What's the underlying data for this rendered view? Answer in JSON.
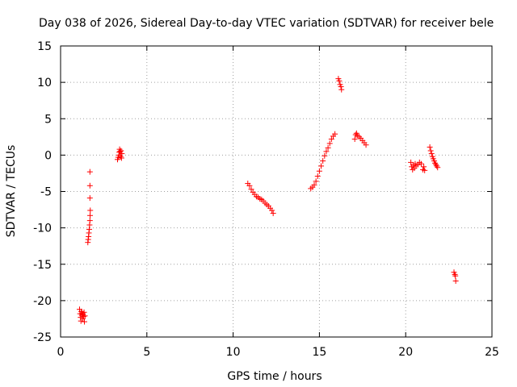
{
  "chart_data": {
    "type": "scatter",
    "title": "Day 038 of 2026, Sidereal Day-to-day VTEC variation (SDTVAR) for receiver bele",
    "xlabel": "GPS time / hours",
    "ylabel": "SDTVAR / TECUs",
    "xlim": [
      0,
      25
    ],
    "ylim": [
      -25,
      15
    ],
    "xticks": [
      0,
      5,
      10,
      15,
      20,
      25
    ],
    "yticks": [
      -25,
      -20,
      -15,
      -10,
      -5,
      0,
      5,
      10,
      15
    ],
    "xtick_labels": [
      "0",
      "5",
      "10",
      "15",
      "20",
      "25"
    ],
    "ytick_labels": [
      "-25",
      "-20",
      "-15",
      "-10",
      "-5",
      "0",
      "5",
      "10",
      "15"
    ],
    "grid": true,
    "marker": "plus",
    "color": "#ff0000",
    "series": [
      {
        "name": "SDTVAR",
        "points": [
          [
            1.1,
            -21.2
          ],
          [
            1.13,
            -21.8
          ],
          [
            1.16,
            -22.3
          ],
          [
            1.18,
            -22.8
          ],
          [
            1.2,
            -21.5
          ],
          [
            1.23,
            -22.0
          ],
          [
            1.25,
            -21.7
          ],
          [
            1.28,
            -22.5
          ],
          [
            1.3,
            -21.9
          ],
          [
            1.33,
            -22.2
          ],
          [
            1.36,
            -21.6
          ],
          [
            1.38,
            -22.9
          ],
          [
            1.41,
            -22.1
          ],
          [
            1.58,
            -12.0
          ],
          [
            1.6,
            -11.6
          ],
          [
            1.62,
            -11.2
          ],
          [
            1.64,
            -10.7
          ],
          [
            1.66,
            -10.2
          ],
          [
            1.68,
            -9.6
          ],
          [
            1.7,
            -9.0
          ],
          [
            1.71,
            -8.3
          ],
          [
            1.72,
            -7.6
          ],
          [
            1.7,
            -5.9
          ],
          [
            1.7,
            -4.2
          ],
          [
            1.7,
            -2.3
          ],
          [
            3.3,
            -0.6
          ],
          [
            3.34,
            -0.3
          ],
          [
            3.38,
            0.0
          ],
          [
            3.4,
            0.4
          ],
          [
            3.42,
            0.8
          ],
          [
            3.45,
            0.5
          ],
          [
            3.48,
            -0.2
          ],
          [
            3.5,
            0.6
          ],
          [
            3.53,
            -0.4
          ],
          [
            3.55,
            0.2
          ],
          [
            10.85,
            -3.9
          ],
          [
            10.95,
            -4.2
          ],
          [
            11.05,
            -4.7
          ],
          [
            11.15,
            -5.1
          ],
          [
            11.25,
            -5.4
          ],
          [
            11.35,
            -5.7
          ],
          [
            11.45,
            -5.8
          ],
          [
            11.55,
            -6.0
          ],
          [
            11.65,
            -6.1
          ],
          [
            11.75,
            -6.3
          ],
          [
            11.85,
            -6.6
          ],
          [
            11.95,
            -6.8
          ],
          [
            12.05,
            -7.0
          ],
          [
            12.15,
            -7.3
          ],
          [
            12.25,
            -7.6
          ],
          [
            12.32,
            -8.0
          ],
          [
            14.5,
            -4.6
          ],
          [
            14.6,
            -4.4
          ],
          [
            14.7,
            -4.1
          ],
          [
            14.8,
            -3.6
          ],
          [
            14.9,
            -2.9
          ],
          [
            15.0,
            -2.2
          ],
          [
            15.1,
            -1.5
          ],
          [
            15.2,
            -0.8
          ],
          [
            15.3,
            -0.1
          ],
          [
            15.4,
            0.5
          ],
          [
            15.5,
            1.0
          ],
          [
            15.6,
            1.6
          ],
          [
            15.7,
            2.2
          ],
          [
            15.8,
            2.6
          ],
          [
            15.9,
            2.9
          ],
          [
            16.1,
            10.5
          ],
          [
            16.15,
            10.2
          ],
          [
            16.2,
            9.7
          ],
          [
            16.25,
            9.4
          ],
          [
            16.28,
            9.0
          ],
          [
            17.05,
            2.2
          ],
          [
            17.1,
            2.8
          ],
          [
            17.15,
            3.0
          ],
          [
            17.2,
            2.7
          ],
          [
            17.3,
            2.5
          ],
          [
            17.4,
            2.3
          ],
          [
            17.5,
            2.0
          ],
          [
            17.6,
            1.7
          ],
          [
            17.7,
            1.4
          ],
          [
            20.3,
            -1.0
          ],
          [
            20.35,
            -1.6
          ],
          [
            20.4,
            -2.0
          ],
          [
            20.45,
            -1.4
          ],
          [
            20.5,
            -1.8
          ],
          [
            20.55,
            -1.2
          ],
          [
            20.6,
            -1.5
          ],
          [
            20.7,
            -1.3
          ],
          [
            20.8,
            -1.0
          ],
          [
            20.9,
            -1.2
          ],
          [
            21.0,
            -2.0
          ],
          [
            21.05,
            -1.6
          ],
          [
            21.1,
            -2.1
          ],
          [
            21.4,
            1.1
          ],
          [
            21.45,
            0.6
          ],
          [
            21.5,
            0.2
          ],
          [
            21.55,
            -0.2
          ],
          [
            21.6,
            -0.5
          ],
          [
            21.65,
            -0.8
          ],
          [
            21.7,
            -1.1
          ],
          [
            21.75,
            -1.3
          ],
          [
            21.8,
            -1.5
          ],
          [
            21.85,
            -1.7
          ],
          [
            22.8,
            -16.1
          ],
          [
            22.85,
            -16.4
          ],
          [
            22.88,
            -16.6
          ],
          [
            22.9,
            -17.3
          ]
        ]
      }
    ]
  }
}
